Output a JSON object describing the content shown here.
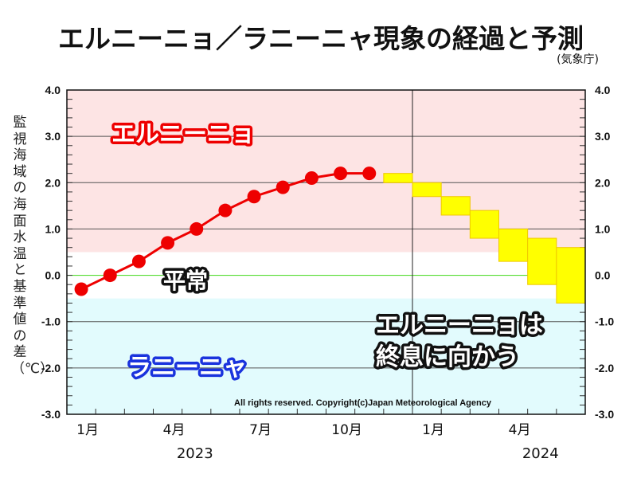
{
  "title": "エルニーニョ／ラニーニャ現象の経過と予測",
  "source": "(気象庁)",
  "chart_data": {
    "type": "line",
    "title": "エルニーニョ／ラニーニャ現象の経過と予測",
    "ylabel": "監視海域の海面水温と基準値の差（℃）",
    "xlabel": "",
    "ylim": [
      -3.0,
      4.0
    ],
    "yticks": [
      "4.0",
      "3.0",
      "2.0",
      "1.0",
      "0.0",
      "-1.0",
      "-2.0",
      "-3.0"
    ],
    "ytick_values": [
      4.0,
      3.0,
      2.0,
      1.0,
      0.0,
      -1.0,
      -2.0,
      -3.0
    ],
    "grid": true,
    "months": [
      "2023-01",
      "2023-02",
      "2023-03",
      "2023-04",
      "2023-05",
      "2023-06",
      "2023-07",
      "2023-08",
      "2023-09",
      "2023-10",
      "2023-11",
      "2023-12",
      "2024-01",
      "2024-02",
      "2024-03",
      "2024-04",
      "2024-05",
      "2024-06"
    ],
    "xtick_labels": [
      {
        "month_index": 0,
        "label": "1月"
      },
      {
        "month_index": 3,
        "label": "4月"
      },
      {
        "month_index": 6,
        "label": "7月"
      },
      {
        "month_index": 9,
        "label": "10月"
      },
      {
        "month_index": 12,
        "label": "1月"
      },
      {
        "month_index": 15,
        "label": "4月"
      }
    ],
    "year_labels": [
      {
        "month_index": 4,
        "label": "2023"
      },
      {
        "month_index": 16,
        "label": "2024"
      }
    ],
    "year_divider_month_index": 12,
    "bands": [
      {
        "name": "El Niño",
        "label": "エルニーニョ",
        "from": 0.5,
        "to": 4.0,
        "color": "#fde4e4",
        "text_color": "#ee0000"
      },
      {
        "name": "Normal",
        "label": "平常",
        "from": -0.5,
        "to": 0.5,
        "color": "#ffffff",
        "text_color": "#ffffff"
      },
      {
        "name": "La Niña",
        "label": "ラニーニャ",
        "from": -3.0,
        "to": -0.5,
        "color": "#e2fbfd",
        "text_color": "#1a33dd"
      }
    ],
    "series": [
      {
        "name": "observed",
        "type": "line",
        "color": "#ee0000",
        "start_month_index": 0,
        "values": [
          -0.3,
          0.0,
          0.3,
          0.7,
          1.0,
          1.4,
          1.7,
          1.9,
          2.1,
          2.2,
          2.2
        ]
      },
      {
        "name": "forecast",
        "type": "range-box",
        "color": "#ffff00",
        "edge_color": "#f0c800",
        "start_month_index": 11,
        "ranges": [
          [
            2.0,
            2.2
          ],
          [
            1.7,
            2.0
          ],
          [
            1.3,
            1.7
          ],
          [
            0.8,
            1.4
          ],
          [
            0.3,
            1.0
          ],
          [
            -0.2,
            0.8
          ],
          [
            -0.6,
            0.6
          ]
        ]
      }
    ],
    "annotations": [
      {
        "text": "エルニーニョは",
        "line": 1
      },
      {
        "text": "終息に向かう",
        "line": 2
      }
    ],
    "zero_line_color": "#55dd33",
    "copyright": "All rights reserved. Copyright(c)Japan Meteorological Agency"
  }
}
